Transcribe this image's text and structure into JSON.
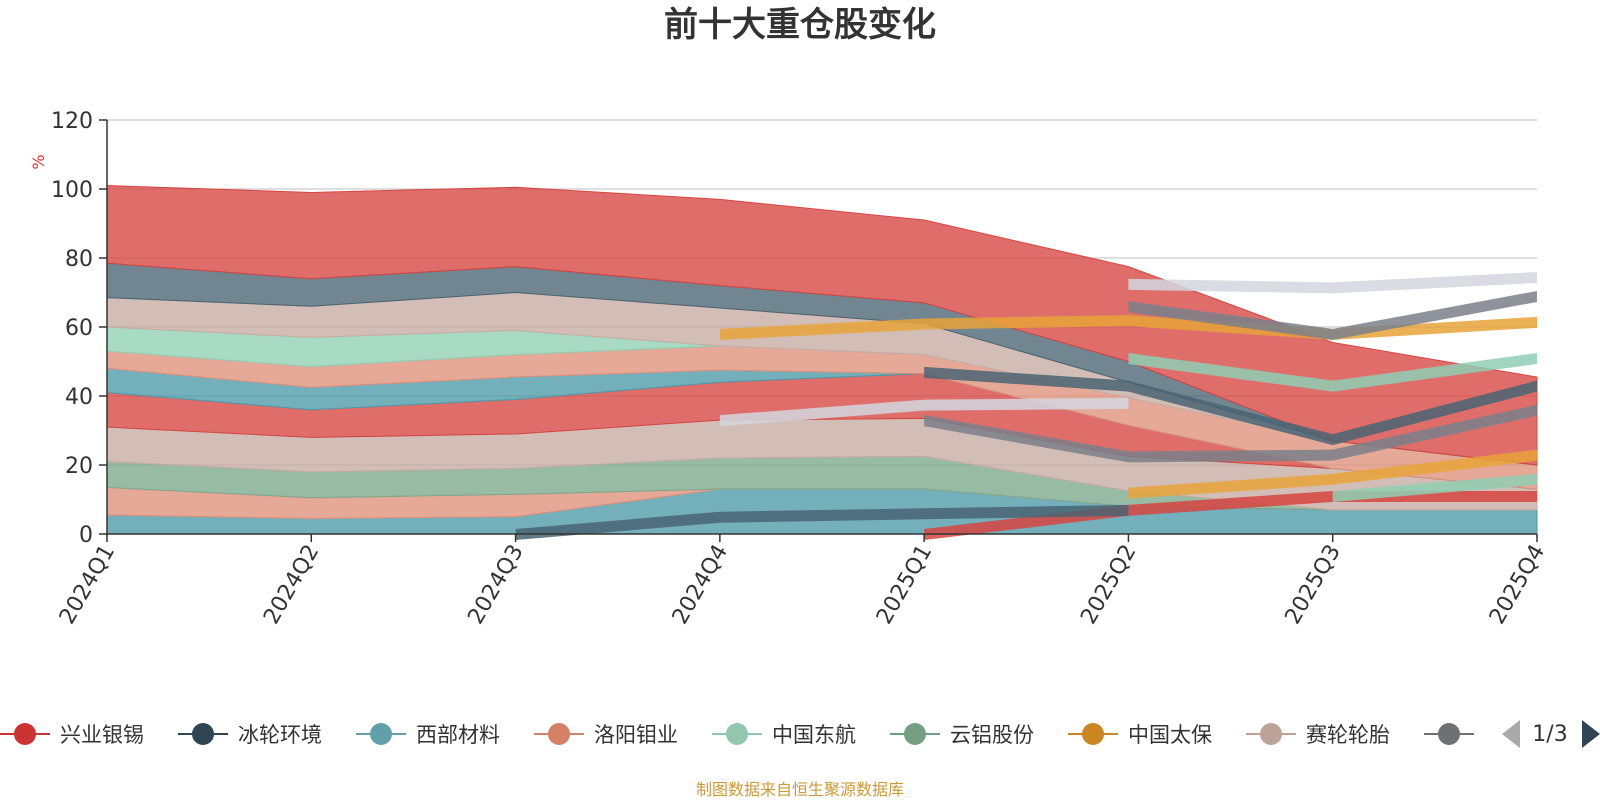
{
  "chart_data": {
    "type": "area",
    "title": "前十大重仓股变化",
    "ylabel": "%",
    "ylim": [
      0,
      120
    ],
    "yticks": [
      0,
      20,
      40,
      60,
      80,
      100,
      120
    ],
    "categories": [
      "2024Q1",
      "2024Q2",
      "2024Q3",
      "2024Q4",
      "2025Q1",
      "2025Q2",
      "2025Q3",
      "2025Q4"
    ],
    "bands": [
      {
        "color": "#4d9aa8",
        "values": [
          0,
          0,
          0,
          0,
          0,
          0,
          0,
          0
        ]
      },
      {
        "color": "#4d9aa8",
        "values": [
          5.5,
          4.5,
          5,
          13,
          13,
          8,
          7,
          7
        ]
      },
      {
        "color": "#e0917a",
        "values": [
          8,
          6,
          6.5,
          0,
          0,
          0,
          0,
          0
        ]
      },
      {
        "color": "#7aa88c",
        "values": [
          7.5,
          7.5,
          7.5,
          9,
          9.5,
          4.5,
          0,
          0
        ]
      },
      {
        "color": "#c7aba3",
        "values": [
          10,
          10,
          10,
          11,
          11,
          10,
          12,
          6
        ]
      },
      {
        "color": "#d64541",
        "values": [
          10,
          8,
          10,
          11,
          13,
          9,
          0,
          0
        ]
      },
      {
        "color": "#4d9aa8",
        "values": [
          7,
          6.5,
          6.5,
          3.5,
          0,
          0,
          0,
          0
        ]
      },
      {
        "color": "#e0917a",
        "values": [
          5,
          6,
          6.5,
          7,
          5.5,
          8,
          8,
          7
        ]
      },
      {
        "color": "#8fcfb4",
        "values": [
          7,
          8.5,
          7,
          0,
          0,
          0,
          0,
          0
        ]
      },
      {
        "color": "#c7aba3",
        "values": [
          8.5,
          9,
          11,
          11,
          9,
          4.5,
          0,
          0
        ]
      },
      {
        "color": "#4a6473",
        "values": [
          10,
          8,
          7.5,
          6.5,
          6,
          6,
          0,
          0
        ]
      },
      {
        "color": "#d64541",
        "values": [
          22.5,
          25,
          23,
          25,
          24,
          27.5,
          28.5,
          25.5
        ]
      }
    ],
    "overlays": [
      {
        "color": "#d64541",
        "values": [
          null,
          null,
          null,
          null,
          0,
          7,
          11,
          11
        ]
      },
      {
        "color": "#4a6473",
        "values": [
          null,
          null,
          0,
          5,
          6,
          7,
          null,
          null
        ]
      },
      {
        "color": "#8fcfb4",
        "values": [
          null,
          null,
          null,
          null,
          null,
          null,
          11,
          16
        ]
      },
      {
        "color": "#e8a33a",
        "values": [
          null,
          null,
          null,
          null,
          null,
          12,
          16,
          23
        ]
      },
      {
        "color": "#7a808a",
        "values": [
          null,
          null,
          null,
          null,
          33,
          22.5,
          23,
          36
        ]
      },
      {
        "color": "#4a6473",
        "values": [
          null,
          null,
          null,
          null,
          47,
          43,
          27.5,
          43
        ]
      },
      {
        "color": "#8fcfb4",
        "values": [
          null,
          null,
          null,
          null,
          null,
          51,
          43,
          51
        ]
      },
      {
        "color": "#e8a33a",
        "values": [
          null,
          null,
          null,
          58,
          61,
          62,
          58,
          61.5
        ]
      },
      {
        "color": "#7a808a",
        "values": [
          null,
          null,
          null,
          null,
          null,
          66,
          58,
          69
        ]
      },
      {
        "color": "#d2d7de",
        "values": [
          null,
          null,
          null,
          33,
          37.5,
          38,
          null,
          null
        ]
      },
      {
        "color": "#d2d7de",
        "values": [
          null,
          null,
          null,
          null,
          null,
          72.5,
          71.5,
          74.5
        ]
      }
    ],
    "legend": [
      {
        "name": "兴业银锡",
        "color": "#cc3333"
      },
      {
        "name": "冰轮环境",
        "color": "#2f4554"
      },
      {
        "name": "西部材料",
        "color": "#61a0a8"
      },
      {
        "name": "洛阳钼业",
        "color": "#d48265"
      },
      {
        "name": "中国东航",
        "color": "#91c7ae"
      },
      {
        "name": "云铝股份",
        "color": "#749f83"
      },
      {
        "name": "中国太保",
        "color": "#ca8622"
      },
      {
        "name": "赛轮轮胎",
        "color": "#bda29a"
      },
      {
        "name": "",
        "color": "#6e7074"
      }
    ],
    "legend_page": "1/3",
    "grid": true,
    "legend_position": "bottom"
  },
  "source_text": "制图数据来自恒生聚源数据库",
  "colors": {
    "unit": "#e03030",
    "source": "#c89a3a",
    "axis": "#333333",
    "grid": "#cccccc",
    "pager_inactive": "#aaaaaa",
    "pager_active": "#2f4554"
  }
}
